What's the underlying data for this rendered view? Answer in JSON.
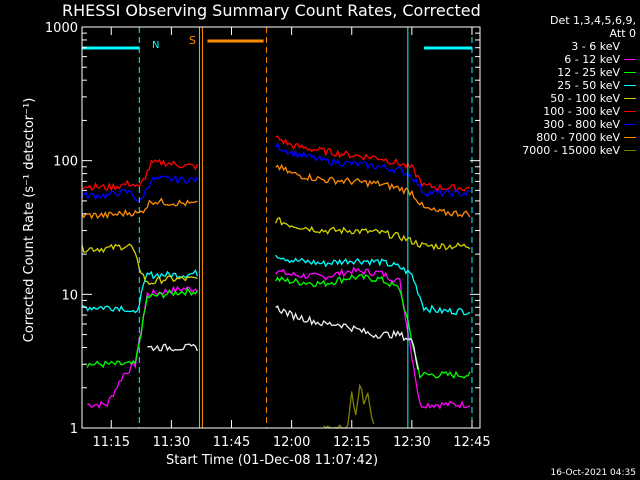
{
  "title": "RHESSI Observing Summary Count Rates, Corrected",
  "timestamp": "16-Oct-2021 04:35",
  "legend": {
    "header_line1": "Det 1,3,4,5,6,9,",
    "header_line2": "Att 0"
  },
  "markers": {
    "n_label": "N",
    "s_label": "S"
  },
  "colors": {
    "background": "#000000",
    "axis": "#ffffff",
    "night": "#00ffff",
    "saa": "#ff8c00"
  },
  "chart_data": {
    "type": "line",
    "title": "RHESSI Observing Summary Count Rates, Corrected",
    "xlabel": "Start Time (01-Dec-08 11:07:42)",
    "ylabel": "Corrected Count Rate (s⁻¹ detector⁻¹)",
    "y_scale": "log",
    "ylim": [
      1,
      1000
    ],
    "y_ticks": [
      1,
      10,
      100,
      1000
    ],
    "y_tick_labels": [
      "1",
      "10",
      "100",
      "1000"
    ],
    "xlim": [
      "11:07:42",
      "12:47:00"
    ],
    "x_ticks": [
      "11:15",
      "11:30",
      "11:45",
      "12:00",
      "12:15",
      "12:30",
      "12:45"
    ],
    "legend_position": "right",
    "annotations": {
      "night_bars": [
        [
          "11:07:42",
          "11:22"
        ],
        [
          "12:33",
          "12:45"
        ]
      ],
      "night_edges": [
        [
          "11:22",
          "dashed"
        ],
        [
          "11:37",
          "solid"
        ],
        [
          "12:29",
          "solid"
        ],
        [
          "12:45",
          "dashed"
        ]
      ],
      "saa_bar": [
        "11:39",
        "11:53"
      ],
      "saa_edges": [
        [
          "11:37",
          "solid"
        ],
        [
          "11:53",
          "dashed"
        ]
      ]
    },
    "series": [
      {
        "name": "3 - 6 keV",
        "color": "#000000",
        "gaps": [],
        "values": []
      },
      {
        "name": "6 - 12 keV",
        "color": "#ff00ff",
        "x": [
          "11:09",
          "11:14",
          "11:18",
          "11:21",
          "11:24",
          "11:28",
          "11:33",
          "11:37",
          "11:56",
          "12:00",
          "12:08",
          "12:15",
          "12:22",
          "12:27",
          "12:32",
          "12:37",
          "12:45"
        ],
        "values": [
          1.5,
          1.5,
          2.5,
          3,
          10,
          10.5,
          11,
          11,
          15,
          14,
          13.5,
          15,
          14.5,
          12.5,
          1.5,
          1.5,
          1.5
        ]
      },
      {
        "name": "12 - 25 keV",
        "color": "#00ff00",
        "x": [
          "11:09",
          "11:14",
          "11:18",
          "11:21",
          "11:24",
          "11:28",
          "11:33",
          "11:37",
          "11:56",
          "12:00",
          "12:08",
          "12:15",
          "12:22",
          "12:27",
          "12:32",
          "12:37",
          "12:45"
        ],
        "values": [
          3,
          3,
          3,
          3,
          9.5,
          10,
          10.5,
          10.5,
          13,
          12.5,
          12,
          13.5,
          13,
          11,
          2.5,
          2.5,
          2.5
        ]
      },
      {
        "name": "25 - 50 keV",
        "color": "#00ffff",
        "x": [
          "11:07:42",
          "11:14",
          "11:18",
          "11:21",
          "11:24",
          "11:28",
          "11:33",
          "11:37",
          "11:56",
          "12:00",
          "12:08",
          "12:15",
          "12:22",
          "12:27",
          "12:30",
          "12:33",
          "12:37",
          "12:45"
        ],
        "values": [
          8,
          8,
          8,
          7,
          14,
          14,
          14,
          14.5,
          20,
          18,
          17,
          18,
          17.5,
          16,
          14,
          8,
          7.5,
          7.5
        ]
      },
      {
        "name": "50 - 100 keV",
        "color": "#d2d200",
        "x": [
          "11:07:42",
          "11:14",
          "11:18",
          "11:20",
          "11:22",
          "11:24",
          "11:28",
          "11:33",
          "11:37",
          "11:56",
          "12:00",
          "12:08",
          "12:15",
          "12:22",
          "12:27",
          "12:30",
          "12:33",
          "12:37",
          "12:45"
        ],
        "values": [
          22,
          22,
          23,
          23,
          16,
          12,
          13,
          13,
          13,
          36,
          33,
          30,
          30,
          29,
          27,
          25,
          23,
          23,
          23
        ]
      },
      {
        "name": "100 - 300 keV",
        "color": "#ff0000",
        "x": [
          "11:07:42",
          "11:14",
          "11:17",
          "11:20",
          "11:22",
          "11:25",
          "11:28",
          "11:33",
          "11:37",
          "11:56",
          "12:00",
          "12:08",
          "12:15",
          "12:22",
          "12:27",
          "12:30",
          "12:33",
          "12:37",
          "12:45"
        ],
        "values": [
          65,
          63,
          65,
          68,
          62,
          95,
          97,
          92,
          90,
          150,
          130,
          118,
          110,
          105,
          95,
          88,
          65,
          63,
          62
        ]
      },
      {
        "name": "300 - 800 keV",
        "color": "#0000ff",
        "x": [
          "11:07:42",
          "11:14",
          "11:17",
          "11:20",
          "11:22",
          "11:25",
          "11:28",
          "11:33",
          "11:37",
          "11:56",
          "12:00",
          "12:08",
          "12:15",
          "12:22",
          "12:27",
          "12:30",
          "12:33",
          "12:37",
          "12:45"
        ],
        "values": [
          55,
          55,
          58,
          58,
          48,
          72,
          73,
          72,
          72,
          130,
          115,
          100,
          95,
          90,
          85,
          77,
          58,
          57,
          57
        ]
      },
      {
        "name": "800 - 7000 keV",
        "color": "#ff8c00",
        "x": [
          "11:07:42",
          "11:14",
          "11:17",
          "11:20",
          "11:22",
          "11:25",
          "11:28",
          "11:33",
          "11:37",
          "11:56",
          "12:00",
          "12:08",
          "12:15",
          "12:22",
          "12:27",
          "12:30",
          "12:33",
          "12:37",
          "12:45"
        ],
        "values": [
          39,
          39,
          40,
          41,
          40,
          50,
          49,
          48,
          47,
          92,
          80,
          72,
          70,
          67,
          62,
          58,
          44,
          41,
          40
        ]
      },
      {
        "name": "7000 - 15000 keV",
        "color": "#808000",
        "x": [
          "12:08",
          "12:14",
          "12:15",
          "12:16",
          "12:17",
          "12:18",
          "12:19",
          "12:20",
          "12:21"
        ],
        "values": [
          1,
          1,
          1.9,
          1.3,
          2.2,
          1.5,
          1.9,
          1.2,
          1
        ]
      },
      {
        "name": "3 - 6 keV (trace)",
        "color": "#000000",
        "x": [
          "11:24",
          "11:27",
          "11:30",
          "11:33",
          "11:37",
          "11:56",
          "12:00",
          "12:04",
          "12:08",
          "12:12",
          "12:16",
          "12:20",
          "12:24",
          "12:27",
          "12:30",
          "12:32"
        ],
        "values": [
          4,
          4,
          4,
          4,
          4,
          8,
          7,
          6.5,
          6,
          6,
          5.5,
          5,
          5,
          5,
          4.5,
          2.5
        ]
      }
    ]
  }
}
